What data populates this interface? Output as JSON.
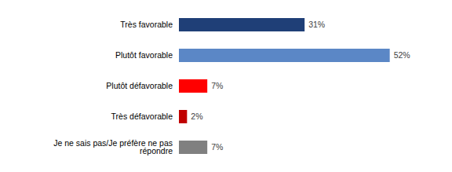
{
  "chart_data": {
    "type": "bar",
    "orientation": "horizontal",
    "categories": [
      "Très favorable",
      "Plutôt favorable",
      "Plutôt défavorable",
      "Très défavorable",
      "Je ne sais pas/Je préfère ne pas répondre"
    ],
    "values": [
      31,
      52,
      7,
      2,
      7
    ],
    "value_labels": [
      "31%",
      "52%",
      "7%",
      "2%",
      "7%"
    ],
    "colors": [
      "#1f3f77",
      "#5b87c6",
      "#ff0000",
      "#c00000",
      "#808080"
    ],
    "xlim": [
      0,
      60
    ],
    "data_labels": true,
    "tick_labels": "y",
    "grid": false
  }
}
